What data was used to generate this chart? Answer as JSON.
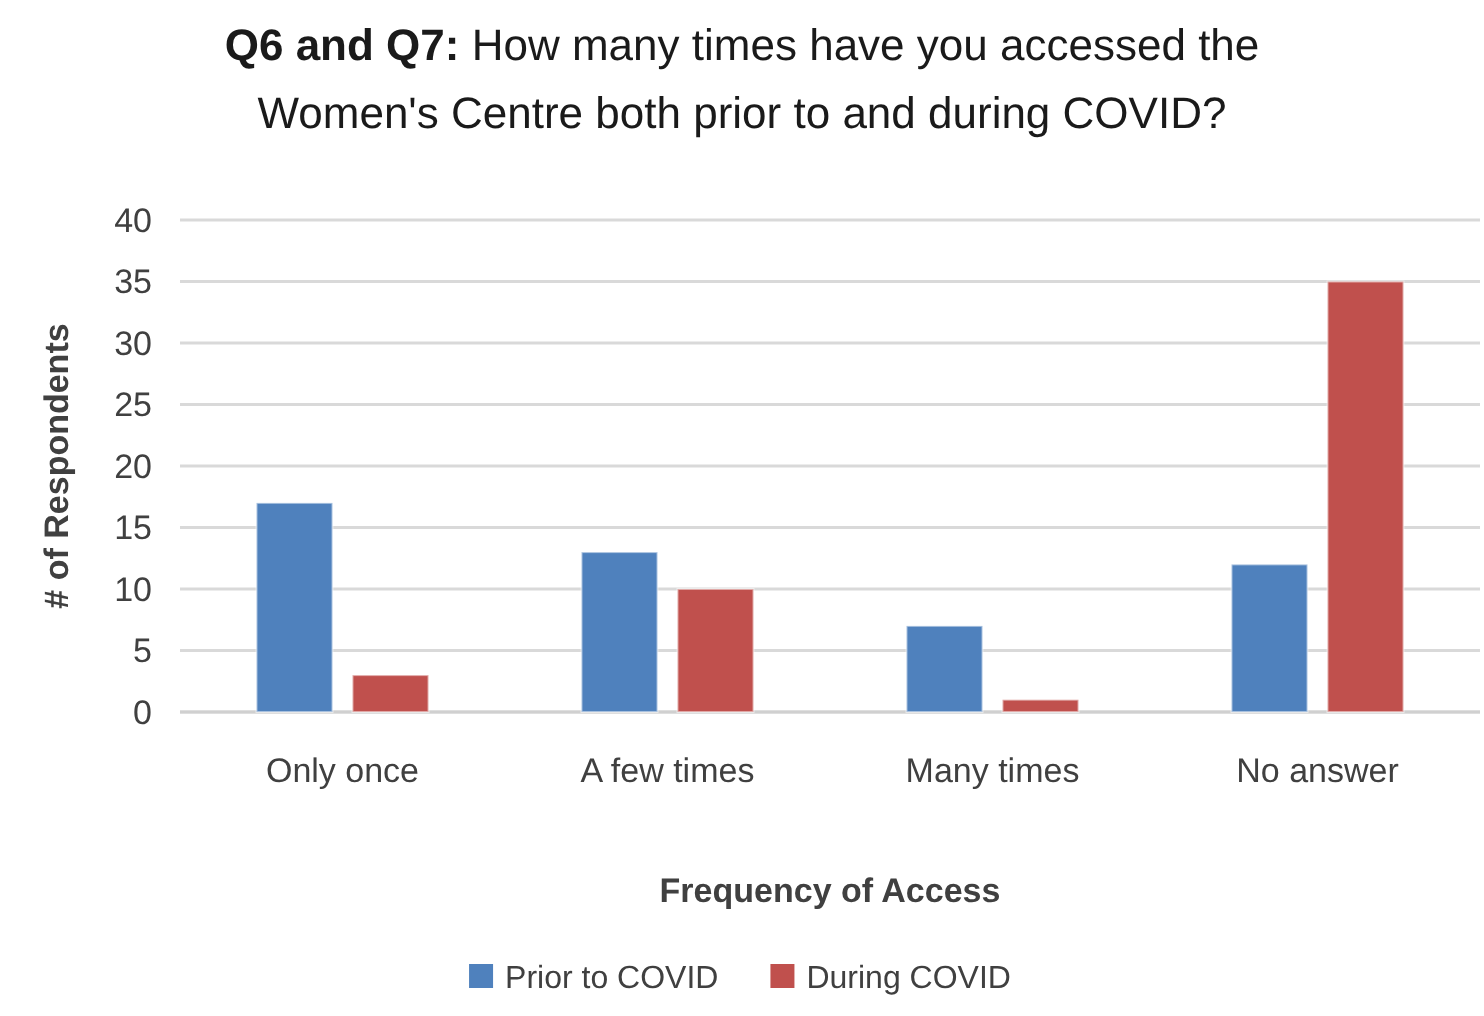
{
  "chart_data": {
    "type": "bar",
    "title": "Q6 and Q7: How many times have you accessed the Women's Centre both prior to and during COVID?",
    "xlabel": "Frequency of Access",
    "ylabel": "# of Respondents",
    "categories": [
      "Only once",
      "A few times",
      "Many times",
      "No answer"
    ],
    "series": [
      {
        "name": "Prior to COVID",
        "color": "#4f81bd",
        "values": [
          17,
          13,
          7,
          12
        ]
      },
      {
        "name": "During COVID",
        "color": "#c0504d",
        "values": [
          3,
          10,
          1,
          35
        ]
      }
    ],
    "ylim": [
      0,
      40
    ],
    "yticks": [
      0,
      5,
      10,
      15,
      20,
      25,
      30,
      35,
      40
    ],
    "grid": "y",
    "legend": "bottom"
  }
}
